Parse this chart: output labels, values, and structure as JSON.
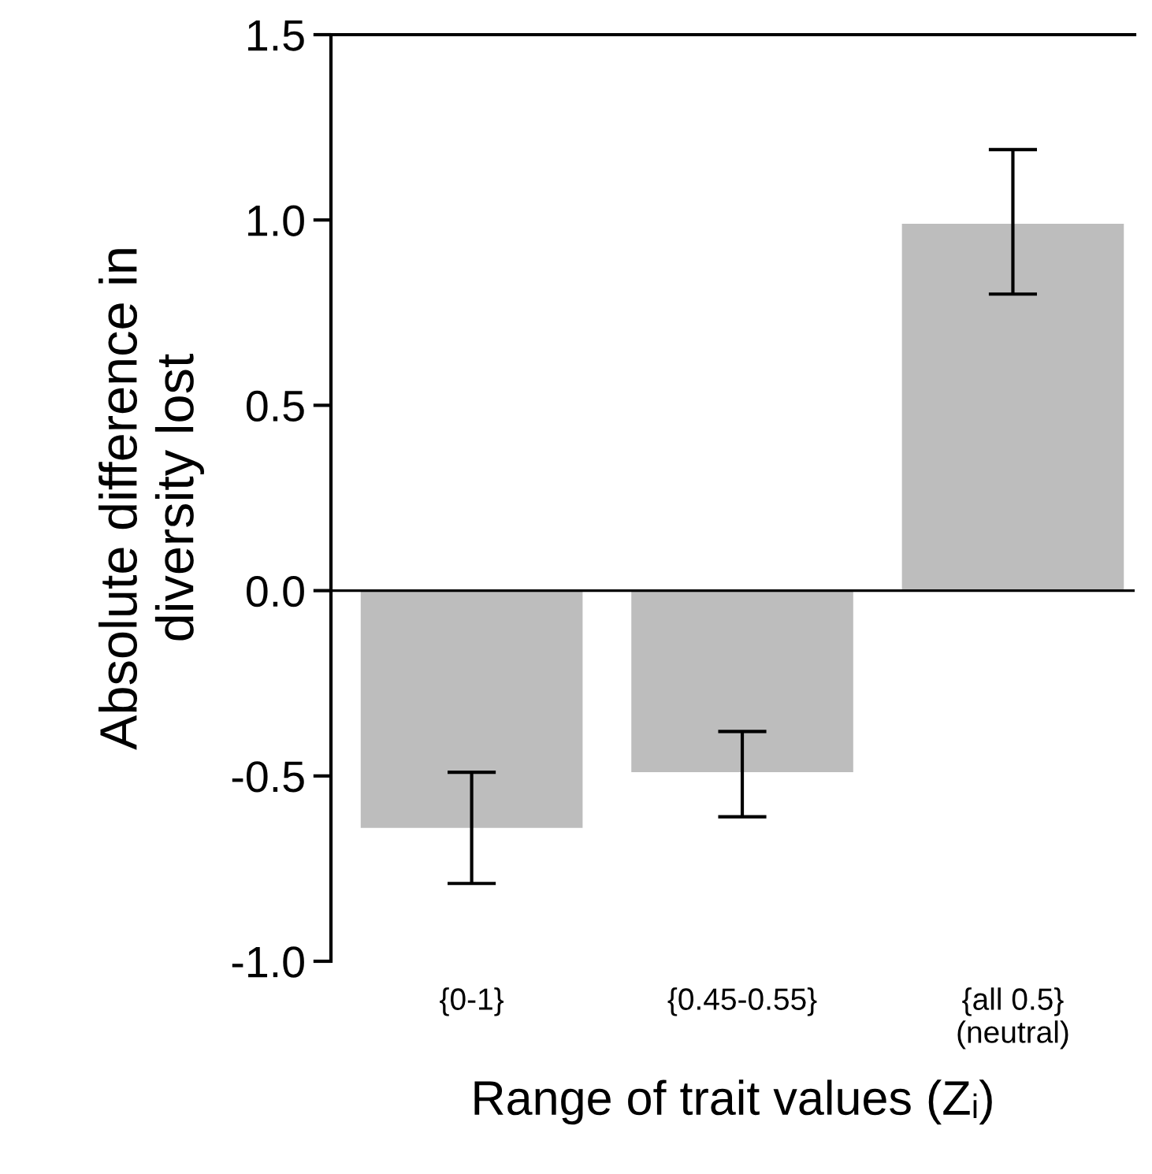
{
  "chart_data": {
    "type": "bar",
    "xlabel": "Range of trait values (Zᵢ)",
    "ylabel": "Absolute difference in\ndiversity lost",
    "categories": [
      "{0-1}",
      "{0.45-0.55}",
      "{all 0.5}\n(neutral)"
    ],
    "values": [
      -0.64,
      -0.49,
      0.99
    ],
    "errors": [
      [
        -0.79,
        -0.49
      ],
      [
        -0.61,
        -0.38
      ],
      [
        0.8,
        1.19
      ]
    ],
    "color": "#bdbdbd",
    "ylim": [
      -1.0,
      1.5
    ],
    "yticks": [
      {
        "value": -1.0,
        "label": "-1.0"
      },
      {
        "value": -0.5,
        "label": "-0.5"
      },
      {
        "value": 0.0,
        "label": "0.0"
      },
      {
        "value": 0.5,
        "label": "0.5"
      },
      {
        "value": 1.0,
        "label": "1.0"
      },
      {
        "value": 1.5,
        "label": "1.5"
      }
    ],
    "ref_lines": [
      {
        "axis": "y",
        "value": 0,
        "color": "#000000"
      }
    ],
    "legend": false
  }
}
